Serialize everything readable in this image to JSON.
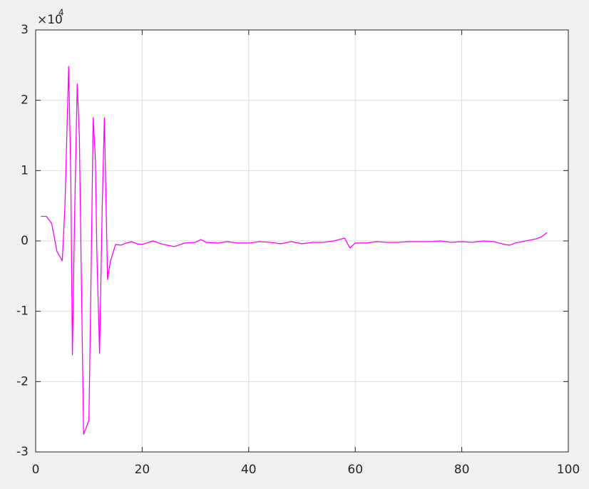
{
  "chart_data": {
    "type": "line",
    "y_multiplier": "×10",
    "y_multiplier_exponent": "4",
    "x": [
      1,
      2,
      3,
      4,
      5,
      5.5,
      6.2,
      6.6,
      6.9,
      7.3,
      7.8,
      8.2,
      9,
      10,
      10.4,
      10.8,
      11.2,
      11.5,
      12,
      12.5,
      12.9,
      13.5,
      14,
      15,
      16,
      17,
      18,
      19,
      20,
      22,
      24,
      26,
      28,
      30,
      31,
      32,
      34,
      36,
      38,
      40,
      42,
      44,
      46,
      48,
      50,
      52,
      54,
      56,
      58,
      59,
      60,
      62,
      64,
      66,
      68,
      70,
      72,
      74,
      76,
      78,
      80,
      82,
      84,
      86,
      88,
      89,
      90,
      92,
      94,
      95,
      96
    ],
    "values": [
      0.35,
      0.35,
      0.25,
      -0.15,
      -0.28,
      0.5,
      2.48,
      0.9,
      -1.62,
      0.3,
      2.23,
      1.5,
      -2.75,
      -2.55,
      -0.5,
      1.75,
      1.2,
      -0.2,
      -1.6,
      0.5,
      1.75,
      -0.55,
      -0.3,
      -0.05,
      -0.06,
      -0.03,
      -0.01,
      -0.04,
      -0.05,
      0.0,
      -0.05,
      -0.08,
      -0.03,
      -0.02,
      0.02,
      -0.02,
      -0.03,
      -0.01,
      -0.03,
      -0.03,
      -0.01,
      -0.02,
      -0.04,
      -0.01,
      -0.04,
      -0.02,
      -0.02,
      0.0,
      0.04,
      -0.1,
      -0.03,
      -0.03,
      -0.01,
      -0.02,
      -0.02,
      -0.01,
      -0.01,
      -0.01,
      0.0,
      -0.02,
      -0.01,
      -0.02,
      0.0,
      -0.01,
      -0.05,
      -0.06,
      -0.03,
      0.0,
      0.03,
      0.06,
      0.12
    ],
    "color": "#ff00ff",
    "xlim": [
      0,
      100
    ],
    "xticks": [
      0,
      20,
      40,
      60,
      80,
      100
    ],
    "ylim": [
      -3,
      3
    ],
    "yticks": [
      -3,
      -2,
      -1,
      0,
      1,
      2,
      3
    ],
    "grid": true
  }
}
